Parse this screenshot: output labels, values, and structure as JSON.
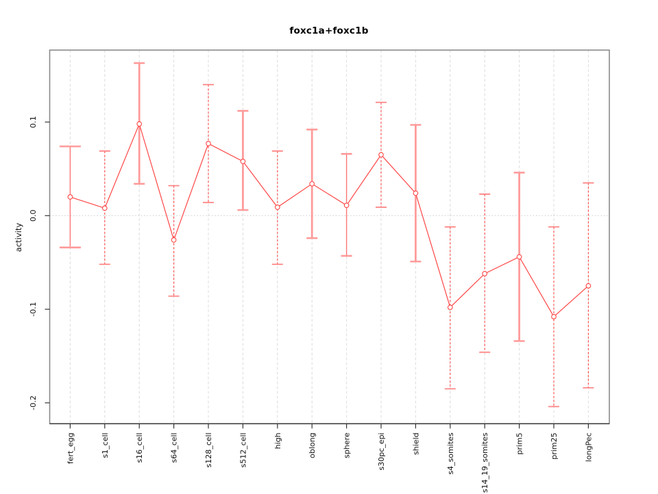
{
  "figure": {
    "background": "#ffffff"
  },
  "chart_data": {
    "type": "line",
    "title": "foxc1a+foxc1b",
    "ylabel": "activity",
    "xlabel": "",
    "legend_position": "none",
    "marker": "open-circle",
    "error_bars": true,
    "categories": [
      "fert_egg",
      "s1_cell",
      "s16_cell",
      "s64_cell",
      "s128_cell",
      "s512_cell",
      "high",
      "oblong",
      "sphere",
      "s30pc_epi",
      "shield",
      "s4_somites",
      "s14_19_somites",
      "prim5",
      "prim25",
      "longPec"
    ],
    "series": [
      {
        "name": "activity",
        "values": [
          0.02,
          0.008,
          0.098,
          -0.026,
          0.077,
          0.058,
          0.009,
          0.034,
          0.011,
          0.065,
          0.024,
          -0.098,
          -0.062,
          -0.044,
          -0.108,
          -0.075
        ],
        "upper": [
          0.074,
          0.069,
          0.163,
          0.032,
          0.14,
          0.112,
          0.069,
          0.092,
          0.066,
          0.121,
          0.097,
          -0.012,
          0.023,
          0.046,
          -0.012,
          0.035
        ],
        "lower": [
          -0.034,
          -0.052,
          0.034,
          -0.086,
          0.014,
          0.006,
          -0.052,
          -0.024,
          -0.043,
          0.009,
          -0.049,
          -0.185,
          -0.146,
          -0.134,
          -0.204,
          -0.184
        ]
      }
    ],
    "bar_styles": [
      "thin-solid",
      "dashed",
      "thick-solid",
      "dashed",
      "dashed",
      "thick-solid",
      "dashed",
      "thick-solid",
      "thin-solid",
      "dashed",
      "thick-solid",
      "dashed",
      "dashed",
      "thick-solid",
      "dashed",
      "dashed"
    ],
    "wide_cap_index": 0,
    "yticks": {
      "values": [
        0.1,
        0.0,
        -0.1,
        -0.2
      ],
      "labels": [
        "0.1",
        "0.0",
        "-0.1",
        "-0.2"
      ]
    },
    "ylim": [
      -0.223,
      0.177
    ],
    "grid": {
      "vertical": "dashed gridline at every category",
      "horizontal": "dotted gridline at y=0"
    },
    "colors": {
      "series_line": "#ff4646",
      "marker_stroke": "#ff4646",
      "marker_fill": "#ffffff",
      "bar_thick": "#ff9b9b",
      "bar_thin": "#ff7575",
      "bar_dashed": "#ff4646",
      "cap_light": "#ff9b9b",
      "cap_dashed": "#ff8585",
      "gridline": "#dcdcdc",
      "zero_line": "#c8c8c8",
      "plot_border": "#8a8a8a",
      "axis": "#333333",
      "text": "#111111"
    }
  }
}
